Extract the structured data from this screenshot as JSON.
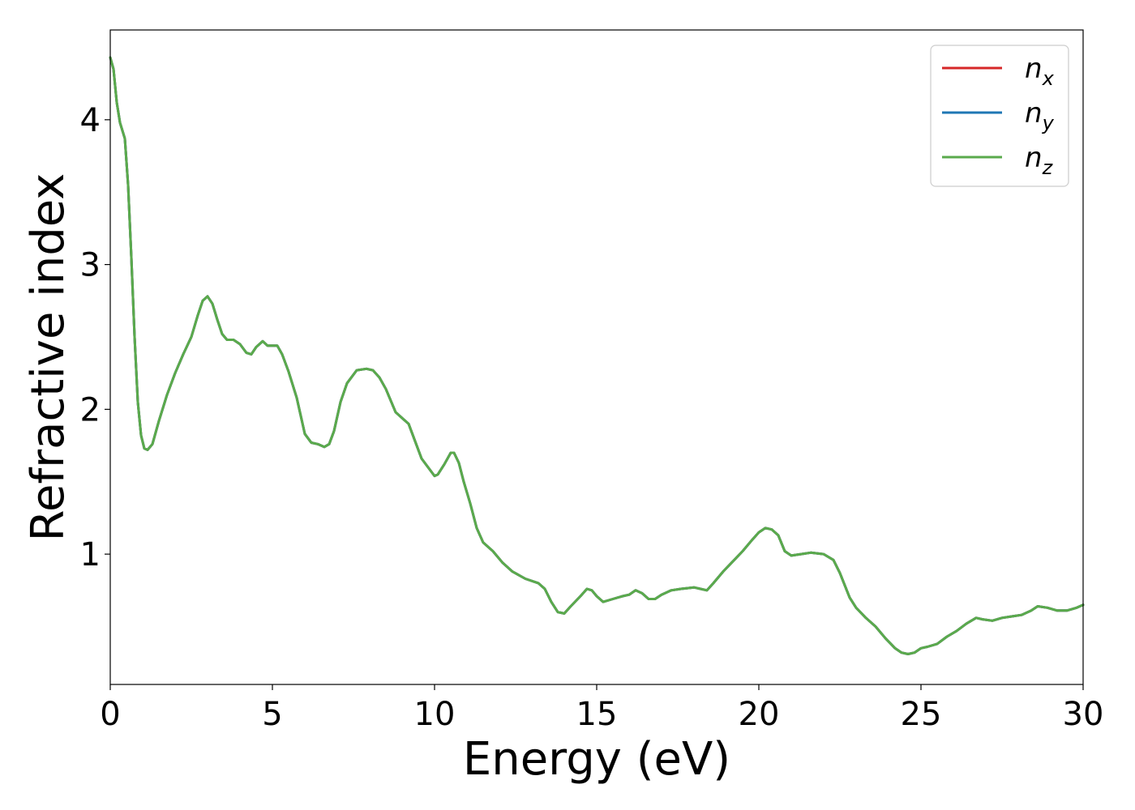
{
  "chart_data": {
    "type": "line",
    "xlabel": "Energy (eV)",
    "ylabel": "Refractive index",
    "xlim": [
      0,
      30
    ],
    "ylim": [
      0.1,
      4.62
    ],
    "xticks": [
      0,
      5,
      10,
      15,
      20,
      25,
      30
    ],
    "xtick_labels": [
      "0",
      "5",
      "10",
      "15",
      "20",
      "25",
      "30"
    ],
    "yticks": [
      1,
      2,
      3,
      4
    ],
    "ytick_labels": [
      "1",
      "2",
      "3",
      "4"
    ],
    "grid": false,
    "legend_position": "top-right",
    "x": [
      0,
      0.1,
      0.2,
      0.3,
      0.45,
      0.55,
      0.65,
      0.75,
      0.85,
      0.95,
      1.05,
      1.15,
      1.3,
      1.5,
      1.75,
      2.0,
      2.25,
      2.5,
      2.7,
      2.85,
      3.0,
      3.15,
      3.3,
      3.45,
      3.6,
      3.8,
      4.0,
      4.2,
      4.35,
      4.5,
      4.7,
      4.85,
      5.0,
      5.15,
      5.3,
      5.5,
      5.75,
      6.0,
      6.2,
      6.4,
      6.6,
      6.75,
      6.9,
      7.1,
      7.3,
      7.6,
      7.9,
      8.1,
      8.3,
      8.5,
      8.8,
      9.0,
      9.2,
      9.4,
      9.6,
      9.8,
      10.0,
      10.1,
      10.3,
      10.5,
      10.6,
      10.75,
      10.9,
      11.1,
      11.3,
      11.5,
      11.8,
      12.1,
      12.4,
      12.8,
      13.2,
      13.4,
      13.6,
      13.8,
      14.0,
      14.2,
      14.5,
      14.7,
      14.85,
      15.0,
      15.2,
      15.5,
      15.8,
      16.0,
      16.2,
      16.4,
      16.6,
      16.8,
      17.0,
      17.3,
      17.6,
      18.0,
      18.2,
      18.4,
      18.6,
      18.9,
      19.2,
      19.5,
      19.8,
      20.0,
      20.2,
      20.4,
      20.6,
      20.8,
      21.0,
      21.3,
      21.6,
      22.0,
      22.3,
      22.5,
      22.8,
      23.0,
      23.3,
      23.6,
      23.9,
      24.2,
      24.4,
      24.6,
      24.8,
      25.0,
      25.2,
      25.5,
      25.8,
      26.1,
      26.4,
      26.7,
      26.9,
      27.2,
      27.5,
      27.8,
      28.1,
      28.4,
      28.6,
      28.9,
      29.2,
      29.5,
      29.8,
      30.0
    ],
    "series": [
      {
        "name": "nx",
        "color": "#d62728",
        "values": [
          4.43,
          4.35,
          4.12,
          3.98,
          3.87,
          3.55,
          3.05,
          2.5,
          2.05,
          1.82,
          1.73,
          1.72,
          1.76,
          1.92,
          2.1,
          2.25,
          2.38,
          2.5,
          2.65,
          2.75,
          2.78,
          2.73,
          2.62,
          2.52,
          2.48,
          2.48,
          2.45,
          2.39,
          2.38,
          2.43,
          2.47,
          2.44,
          2.44,
          2.44,
          2.38,
          2.26,
          2.08,
          1.83,
          1.77,
          1.76,
          1.74,
          1.76,
          1.85,
          2.05,
          2.18,
          2.27,
          2.28,
          2.27,
          2.22,
          2.14,
          1.98,
          1.94,
          1.9,
          1.78,
          1.66,
          1.6,
          1.54,
          1.55,
          1.62,
          1.7,
          1.7,
          1.63,
          1.5,
          1.35,
          1.18,
          1.08,
          1.02,
          0.94,
          0.88,
          0.83,
          0.8,
          0.76,
          0.67,
          0.6,
          0.59,
          0.64,
          0.71,
          0.76,
          0.75,
          0.71,
          0.67,
          0.69,
          0.71,
          0.72,
          0.75,
          0.73,
          0.69,
          0.69,
          0.72,
          0.75,
          0.76,
          0.77,
          0.76,
          0.75,
          0.8,
          0.88,
          0.95,
          1.02,
          1.1,
          1.15,
          1.18,
          1.17,
          1.13,
          1.02,
          0.99,
          1.0,
          1.01,
          1.0,
          0.96,
          0.87,
          0.7,
          0.63,
          0.56,
          0.5,
          0.42,
          0.35,
          0.32,
          0.31,
          0.32,
          0.35,
          0.36,
          0.38,
          0.43,
          0.47,
          0.52,
          0.56,
          0.55,
          0.54,
          0.56,
          0.57,
          0.58,
          0.61,
          0.64,
          0.63,
          0.61,
          0.61,
          0.63,
          0.65
        ]
      },
      {
        "name": "ny",
        "color": "#1f77b4",
        "values": [
          4.43,
          4.35,
          4.12,
          3.98,
          3.87,
          3.55,
          3.05,
          2.5,
          2.05,
          1.82,
          1.73,
          1.72,
          1.76,
          1.92,
          2.1,
          2.25,
          2.38,
          2.5,
          2.65,
          2.75,
          2.78,
          2.73,
          2.62,
          2.52,
          2.48,
          2.48,
          2.45,
          2.39,
          2.38,
          2.43,
          2.47,
          2.44,
          2.44,
          2.44,
          2.38,
          2.26,
          2.08,
          1.83,
          1.77,
          1.76,
          1.74,
          1.76,
          1.85,
          2.05,
          2.18,
          2.27,
          2.28,
          2.27,
          2.22,
          2.14,
          1.98,
          1.94,
          1.9,
          1.78,
          1.66,
          1.6,
          1.54,
          1.55,
          1.62,
          1.7,
          1.7,
          1.63,
          1.5,
          1.35,
          1.18,
          1.08,
          1.02,
          0.94,
          0.88,
          0.83,
          0.8,
          0.76,
          0.67,
          0.6,
          0.59,
          0.64,
          0.71,
          0.76,
          0.75,
          0.71,
          0.67,
          0.69,
          0.71,
          0.72,
          0.75,
          0.73,
          0.69,
          0.69,
          0.72,
          0.75,
          0.76,
          0.77,
          0.76,
          0.75,
          0.8,
          0.88,
          0.95,
          1.02,
          1.1,
          1.15,
          1.18,
          1.17,
          1.13,
          1.02,
          0.99,
          1.0,
          1.01,
          1.0,
          0.96,
          0.87,
          0.7,
          0.63,
          0.56,
          0.5,
          0.42,
          0.35,
          0.32,
          0.31,
          0.32,
          0.35,
          0.36,
          0.38,
          0.43,
          0.47,
          0.52,
          0.56,
          0.55,
          0.54,
          0.56,
          0.57,
          0.58,
          0.61,
          0.64,
          0.63,
          0.61,
          0.61,
          0.63,
          0.65
        ]
      },
      {
        "name": "nz",
        "color": "#5aaa4c",
        "values": [
          4.43,
          4.35,
          4.12,
          3.98,
          3.87,
          3.55,
          3.05,
          2.5,
          2.05,
          1.82,
          1.73,
          1.72,
          1.76,
          1.92,
          2.1,
          2.25,
          2.38,
          2.5,
          2.65,
          2.75,
          2.78,
          2.73,
          2.62,
          2.52,
          2.48,
          2.48,
          2.45,
          2.39,
          2.38,
          2.43,
          2.47,
          2.44,
          2.44,
          2.44,
          2.38,
          2.26,
          2.08,
          1.83,
          1.77,
          1.76,
          1.74,
          1.76,
          1.85,
          2.05,
          2.18,
          2.27,
          2.28,
          2.27,
          2.22,
          2.14,
          1.98,
          1.94,
          1.9,
          1.78,
          1.66,
          1.6,
          1.54,
          1.55,
          1.62,
          1.7,
          1.7,
          1.63,
          1.5,
          1.35,
          1.18,
          1.08,
          1.02,
          0.94,
          0.88,
          0.83,
          0.8,
          0.76,
          0.67,
          0.6,
          0.59,
          0.64,
          0.71,
          0.76,
          0.75,
          0.71,
          0.67,
          0.69,
          0.71,
          0.72,
          0.75,
          0.73,
          0.69,
          0.69,
          0.72,
          0.75,
          0.76,
          0.77,
          0.76,
          0.75,
          0.8,
          0.88,
          0.95,
          1.02,
          1.1,
          1.15,
          1.18,
          1.17,
          1.13,
          1.02,
          0.99,
          1.0,
          1.01,
          1.0,
          0.96,
          0.87,
          0.7,
          0.63,
          0.56,
          0.5,
          0.42,
          0.35,
          0.32,
          0.31,
          0.32,
          0.35,
          0.36,
          0.38,
          0.43,
          0.47,
          0.52,
          0.56,
          0.55,
          0.54,
          0.56,
          0.57,
          0.58,
          0.61,
          0.64,
          0.63,
          0.61,
          0.61,
          0.63,
          0.65
        ]
      }
    ],
    "legend": [
      {
        "base": "n",
        "sub": "x",
        "color": "#d62728"
      },
      {
        "base": "n",
        "sub": "y",
        "color": "#1f77b4"
      },
      {
        "base": "n",
        "sub": "z",
        "color": "#5aaa4c"
      }
    ]
  }
}
